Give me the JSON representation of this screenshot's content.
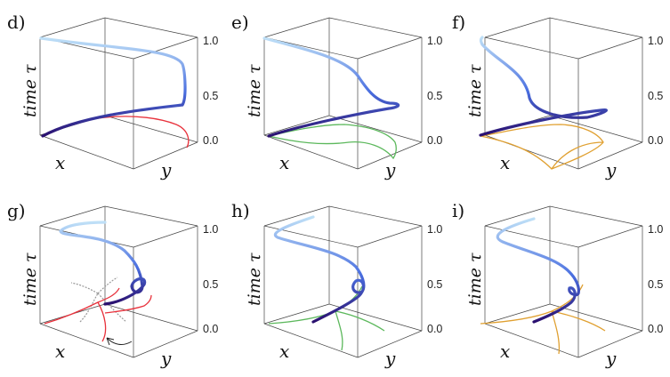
{
  "panels": [
    {
      "id": "d",
      "label": "d)",
      "floor_color": "#e8323c",
      "ghost": false
    },
    {
      "id": "e",
      "label": "e)",
      "floor_color": "#5cb85c",
      "ghost": false
    },
    {
      "id": "f",
      "label": "f)",
      "floor_color": "#e0a030",
      "ghost": false
    },
    {
      "id": "g",
      "label": "g)",
      "floor_color": "#e8323c",
      "ghost": true
    },
    {
      "id": "h",
      "label": "h)",
      "floor_color": "#5cb85c",
      "ghost": false
    },
    {
      "id": "i",
      "label": "i)",
      "floor_color": "#e0a030",
      "ghost": false
    }
  ],
  "axes": {
    "x_label": "x",
    "y_label": "y",
    "z_label": "time τ",
    "z_ticks": [
      "0.0",
      "0.5",
      "1.0"
    ]
  },
  "colors": {
    "trajectory_start": "#2a0f6e",
    "trajectory_mid": "#4a6fe0",
    "trajectory_end": "#bfe0f7",
    "ghost": "#999999",
    "box": "#444444"
  }
}
